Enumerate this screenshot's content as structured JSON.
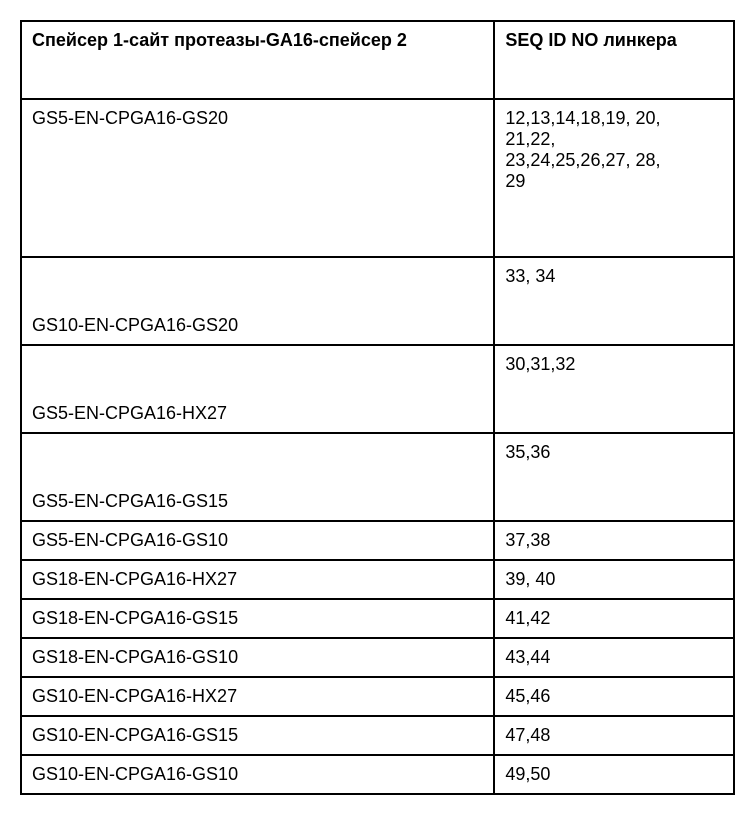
{
  "table": {
    "header": {
      "col1": "Спейсер 1-сайт протеазы-GA16-спейсер 2",
      "col2": "SEQ ID NO  линкера"
    },
    "rows": [
      {
        "name": "GS5-EN-CPGA16-GS20",
        "seq_lines": [
          "12,13,14,18,19,    20,",
          "21,22,",
          "23,24,25,26,27,    28,",
          "29"
        ],
        "row_class": "tall1",
        "name_align": "cell-top"
      },
      {
        "name": "GS10-EN-CPGA16-GS20",
        "seq_lines": [
          "33, 34"
        ],
        "row_class": "tall2",
        "name_align": "label-bottom"
      },
      {
        "name": "GS5-EN-CPGA16-HX27",
        "seq_lines": [
          "30,31,32"
        ],
        "row_class": "tall2",
        "name_align": "label-bottom"
      },
      {
        "name": "GS5-EN-CPGA16-GS15",
        "seq_lines": [
          "35,36"
        ],
        "row_class": "tall2",
        "name_align": "label-bottom"
      },
      {
        "name": "GS5-EN-CPGA16-GS10",
        "seq_lines": [
          "37,38"
        ],
        "row_class": "",
        "name_align": ""
      },
      {
        "name": "GS18-EN-CPGA16-HX27",
        "seq_lines": [
          "39, 40"
        ],
        "row_class": "",
        "name_align": ""
      },
      {
        "name": "GS18-EN-CPGA16-GS15",
        "seq_lines": [
          "41,42"
        ],
        "row_class": "",
        "name_align": ""
      },
      {
        "name": "GS18-EN-CPGA16-GS10",
        "seq_lines": [
          "43,44"
        ],
        "row_class": "",
        "name_align": ""
      },
      {
        "name": "GS10-EN-CPGA16-HX27",
        "seq_lines": [
          "45,46"
        ],
        "row_class": "",
        "name_align": ""
      },
      {
        "name": "GS10-EN-CPGA16-GS15",
        "seq_lines": [
          "47,48"
        ],
        "row_class": "",
        "name_align": ""
      },
      {
        "name": "GS10-EN-CPGA16-GS10",
        "seq_lines": [
          "49,50"
        ],
        "row_class": "",
        "name_align": ""
      }
    ]
  }
}
